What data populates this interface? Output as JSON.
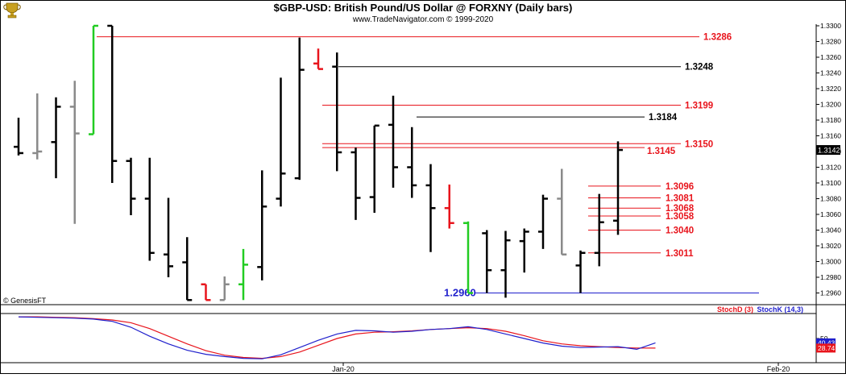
{
  "header": {
    "title": "$GBP-USD:  British Pound/US Dollar @ FORXNY  (Daily bars)",
    "subtitle": "www.TradeNavigator.com © 1999-2020",
    "logo_icon": "trophy-icon",
    "watermark": "© GenesisFT"
  },
  "chart_data": [
    {
      "type": "ohlc",
      "title": "$GBP-USD:  British Pound/US Dollar @ FORXNY  (Daily bars)",
      "ylim": [
        1.2945,
        1.331
      ],
      "y_ticks": [
        "1.3300",
        "1.3280",
        "1.3260",
        "1.3240",
        "1.3220",
        "1.3200",
        "1.3180",
        "1.3160",
        "1.3140",
        "1.3120",
        "1.3100",
        "1.3080",
        "1.3060",
        "1.3040",
        "1.3020",
        "1.3000",
        "1.2980",
        "1.2960"
      ],
      "x_ticks": [
        "Jan-20",
        "Feb-20"
      ],
      "last_price": "1.3142",
      "colors": {
        "up": "#000000",
        "down": "#000000",
        "gray": "#8a8a8a",
        "red": "#e8141c",
        "green": "#22cc22",
        "level_red": "#e8141c",
        "level_black": "#000000",
        "level_blue": "#1f1fcc"
      },
      "bars": [
        {
          "o": 1.3146,
          "h": 1.3183,
          "l": 1.3135,
          "c": 1.3138,
          "color": "black"
        },
        {
          "o": 1.3138,
          "h": 1.3214,
          "l": 1.313,
          "c": 1.314,
          "color": "gray"
        },
        {
          "o": 1.3152,
          "h": 1.3209,
          "l": 1.3106,
          "c": 1.3197,
          "color": "black"
        },
        {
          "o": 1.3197,
          "h": 1.323,
          "l": 1.3048,
          "c": 1.3163,
          "color": "gray"
        },
        {
          "o": 1.3162,
          "h": 1.33,
          "l": 1.3162,
          "c": 1.33,
          "color": "green"
        },
        {
          "o": 1.33,
          "h": 1.33,
          "l": 1.31,
          "c": 1.3128,
          "color": "black"
        },
        {
          "o": 1.3128,
          "h": 1.3132,
          "l": 1.3059,
          "c": 1.308,
          "color": "black"
        },
        {
          "o": 1.308,
          "h": 1.3132,
          "l": 1.3001,
          "c": 1.3011,
          "color": "black"
        },
        {
          "o": 1.3009,
          "h": 1.3081,
          "l": 1.298,
          "c": 1.2994,
          "color": "black"
        },
        {
          "o": 1.2999,
          "h": 1.3031,
          "l": 1.2951,
          "c": 1.2951,
          "color": "black"
        },
        {
          "o": 1.2971,
          "h": 1.2971,
          "l": 1.2951,
          "c": 1.2951,
          "color": "red"
        },
        {
          "o": 1.2951,
          "h": 1.2981,
          "l": 1.2951,
          "c": 1.2971,
          "color": "gray"
        },
        {
          "o": 1.2971,
          "h": 1.3016,
          "l": 1.2951,
          "c": 1.2996,
          "color": "green"
        },
        {
          "o": 1.2993,
          "h": 1.3116,
          "l": 1.2976,
          "c": 1.307,
          "color": "black"
        },
        {
          "o": 1.308,
          "h": 1.3234,
          "l": 1.307,
          "c": 1.3112,
          "color": "black"
        },
        {
          "o": 1.3106,
          "h": 1.3285,
          "l": 1.3104,
          "c": 1.3244,
          "color": "black"
        },
        {
          "o": 1.3252,
          "h": 1.3271,
          "l": 1.3245,
          "c": 1.3245,
          "color": "red"
        },
        {
          "o": 1.3248,
          "h": 1.3266,
          "l": 1.3115,
          "c": 1.3139,
          "color": "black"
        },
        {
          "o": 1.3139,
          "h": 1.3145,
          "l": 1.3053,
          "c": 1.3081,
          "color": "black"
        },
        {
          "o": 1.3082,
          "h": 1.3173,
          "l": 1.3062,
          "c": 1.3173,
          "color": "black"
        },
        {
          "o": 1.3174,
          "h": 1.3211,
          "l": 1.3094,
          "c": 1.312,
          "color": "black"
        },
        {
          "o": 1.312,
          "h": 1.3171,
          "l": 1.3081,
          "c": 1.3097,
          "color": "black"
        },
        {
          "o": 1.3097,
          "h": 1.3124,
          "l": 1.3012,
          "c": 1.3068,
          "color": "black"
        },
        {
          "o": 1.3068,
          "h": 1.3098,
          "l": 1.3042,
          "c": 1.3049,
          "color": "red"
        },
        {
          "o": 1.3049,
          "h": 1.3051,
          "l": 1.296,
          "c": 1.296,
          "color": "green"
        },
        {
          "o": 1.3036,
          "h": 1.304,
          "l": 1.296,
          "c": 1.2989,
          "color": "black"
        },
        {
          "o": 1.2989,
          "h": 1.3039,
          "l": 1.2954,
          "c": 1.3027,
          "color": "black"
        },
        {
          "o": 1.3026,
          "h": 1.3042,
          "l": 1.2986,
          "c": 1.3038,
          "color": "black"
        },
        {
          "o": 1.3038,
          "h": 1.3085,
          "l": 1.3016,
          "c": 1.308,
          "color": "black"
        },
        {
          "o": 1.308,
          "h": 1.3118,
          "l": 1.3009,
          "c": 1.3009,
          "color": "gray"
        },
        {
          "o": 1.2995,
          "h": 1.3014,
          "l": 1.296,
          "c": 1.3011,
          "color": "black"
        },
        {
          "o": 1.3011,
          "h": 1.3086,
          "l": 1.2994,
          "c": 1.305,
          "color": "black"
        },
        {
          "o": 1.3052,
          "h": 1.3153,
          "l": 1.3034,
          "c": 1.3142,
          "color": "black"
        }
      ],
      "levels": [
        {
          "value": 1.3286,
          "label": "1.3286",
          "color": "red"
        },
        {
          "value": 1.3248,
          "label": "1.3248",
          "color": "black"
        },
        {
          "value": 1.3199,
          "label": "1.3199",
          "color": "red"
        },
        {
          "value": 1.3184,
          "label": "1.3184",
          "color": "black"
        },
        {
          "value": 1.315,
          "label": "1.3150",
          "color": "red"
        },
        {
          "value": 1.3145,
          "label": "1.3145",
          "color": "red"
        },
        {
          "value": 1.3096,
          "label": "1.3096",
          "color": "red"
        },
        {
          "value": 1.3081,
          "label": "1.3081",
          "color": "red"
        },
        {
          "value": 1.3068,
          "label": "1.3068",
          "color": "red"
        },
        {
          "value": 1.3058,
          "label": "1.3058",
          "color": "red"
        },
        {
          "value": 1.304,
          "label": "1.3040",
          "color": "red"
        },
        {
          "value": 1.3011,
          "label": "1.3011",
          "color": "red"
        },
        {
          "value": 1.296,
          "label": "1.2960",
          "color": "blue"
        }
      ]
    },
    {
      "type": "line",
      "ylim": [
        0,
        100
      ],
      "y_ticks": [
        "50"
      ],
      "last_values": [
        "40.43",
        "28.74"
      ],
      "series": [
        {
          "name": "StochD (3)",
          "color": "#e8141c",
          "values": [
            98,
            98,
            97,
            96,
            94,
            91,
            85,
            72,
            55,
            38,
            23,
            13,
            8,
            6,
            10,
            20,
            35,
            50,
            60,
            64,
            65,
            67,
            70,
            72,
            74,
            72,
            66,
            56,
            45,
            38,
            34,
            32,
            30,
            29,
            28.74
          ]
        },
        {
          "name": "StochK (14,3)",
          "color": "#1f1fcc",
          "values": [
            98,
            97,
            96,
            95,
            93,
            88,
            75,
            55,
            38,
            24,
            15,
            10,
            6,
            5,
            14,
            30,
            46,
            60,
            68,
            67,
            64,
            66,
            70,
            72,
            76,
            70,
            60,
            50,
            40,
            33,
            30,
            31,
            32,
            26,
            40.43
          ]
        }
      ]
    }
  ]
}
